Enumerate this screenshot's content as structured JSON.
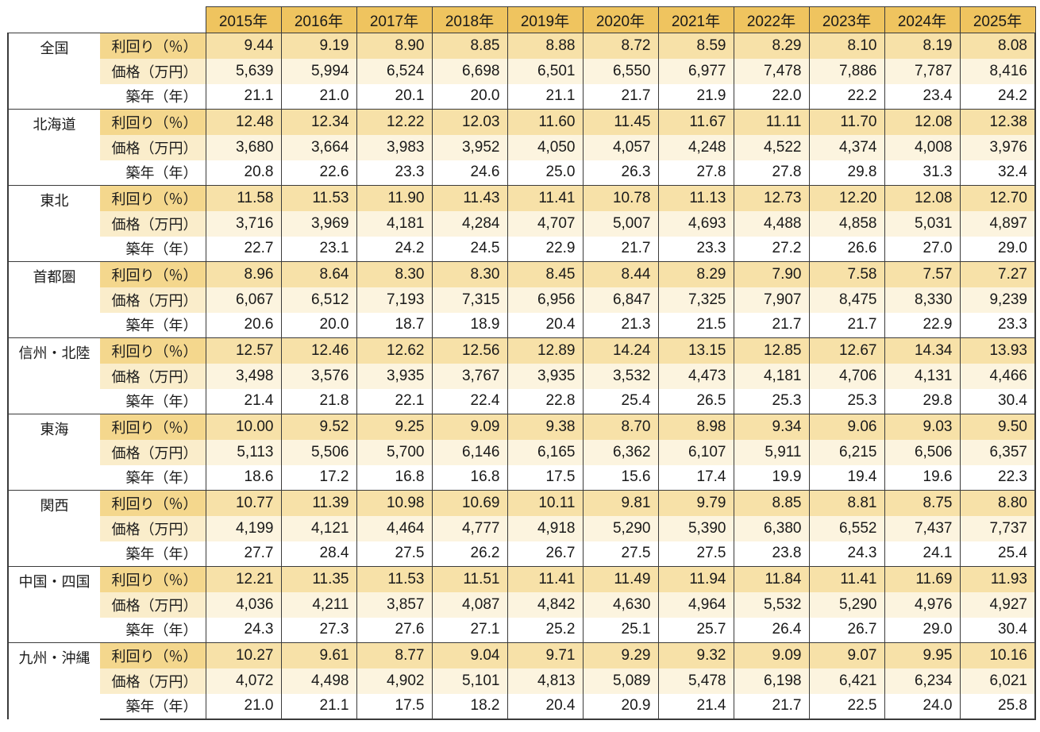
{
  "table": {
    "corner": "",
    "years": [
      "2015年",
      "2016年",
      "2017年",
      "2018年",
      "2019年",
      "2020年",
      "2021年",
      "2022年",
      "2023年",
      "2024年",
      "2025年"
    ],
    "metric_labels": [
      "利回り（％）",
      "価格（万円）",
      "築年（年）"
    ],
    "regions": [
      {
        "name": "全国",
        "rows": [
          {
            "label": "利回り（％）",
            "values": [
              "9.44",
              "9.19",
              "8.90",
              "8.85",
              "8.88",
              "8.72",
              "8.59",
              "8.29",
              "8.10",
              "8.19",
              "8.08"
            ]
          },
          {
            "label": "価格（万円）",
            "values": [
              "5,639",
              "5,994",
              "6,524",
              "6,698",
              "6,501",
              "6,550",
              "6,977",
              "7,478",
              "7,886",
              "7,787",
              "8,416"
            ]
          },
          {
            "label": "築年（年）",
            "values": [
              "21.1",
              "21.0",
              "20.1",
              "20.0",
              "21.1",
              "21.7",
              "21.9",
              "22.0",
              "22.2",
              "23.4",
              "24.2"
            ]
          }
        ]
      },
      {
        "name": "北海道",
        "rows": [
          {
            "label": "利回り（％）",
            "values": [
              "12.48",
              "12.34",
              "12.22",
              "12.03",
              "11.60",
              "11.45",
              "11.67",
              "11.11",
              "11.70",
              "12.08",
              "12.38"
            ]
          },
          {
            "label": "価格（万円）",
            "values": [
              "3,680",
              "3,664",
              "3,983",
              "3,952",
              "4,050",
              "4,057",
              "4,248",
              "4,522",
              "4,374",
              "4,008",
              "3,976"
            ]
          },
          {
            "label": "築年（年）",
            "values": [
              "20.8",
              "22.6",
              "23.3",
              "24.6",
              "25.0",
              "26.3",
              "27.8",
              "27.8",
              "29.8",
              "31.3",
              "32.4"
            ]
          }
        ]
      },
      {
        "name": "東北",
        "rows": [
          {
            "label": "利回り（％）",
            "values": [
              "11.58",
              "11.53",
              "11.90",
              "11.43",
              "11.41",
              "10.78",
              "11.13",
              "12.73",
              "12.20",
              "12.08",
              "12.70"
            ]
          },
          {
            "label": "価格（万円）",
            "values": [
              "3,716",
              "3,969",
              "4,181",
              "4,284",
              "4,707",
              "5,007",
              "4,693",
              "4,488",
              "4,858",
              "5,031",
              "4,897"
            ]
          },
          {
            "label": "築年（年）",
            "values": [
              "22.7",
              "23.1",
              "24.2",
              "24.5",
              "22.9",
              "21.7",
              "23.3",
              "27.2",
              "26.6",
              "27.0",
              "29.0"
            ]
          }
        ]
      },
      {
        "name": "首都圏",
        "rows": [
          {
            "label": "利回り（％）",
            "values": [
              "8.96",
              "8.64",
              "8.30",
              "8.30",
              "8.45",
              "8.44",
              "8.29",
              "7.90",
              "7.58",
              "7.57",
              "7.27"
            ]
          },
          {
            "label": "価格（万円）",
            "values": [
              "6,067",
              "6,512",
              "7,193",
              "7,315",
              "6,956",
              "6,847",
              "7,325",
              "7,907",
              "8,475",
              "8,330",
              "9,239"
            ]
          },
          {
            "label": "築年（年）",
            "values": [
              "20.6",
              "20.0",
              "18.7",
              "18.9",
              "20.4",
              "21.3",
              "21.5",
              "21.7",
              "21.7",
              "22.9",
              "23.3"
            ]
          }
        ]
      },
      {
        "name": "信州・北陸",
        "rows": [
          {
            "label": "利回り（％）",
            "values": [
              "12.57",
              "12.46",
              "12.62",
              "12.56",
              "12.89",
              "14.24",
              "13.15",
              "12.85",
              "12.67",
              "14.34",
              "13.93"
            ]
          },
          {
            "label": "価格（万円）",
            "values": [
              "3,498",
              "3,576",
              "3,935",
              "3,767",
              "3,935",
              "3,532",
              "4,473",
              "4,181",
              "4,706",
              "4,131",
              "4,466"
            ]
          },
          {
            "label": "築年（年）",
            "values": [
              "21.4",
              "21.8",
              "22.1",
              "22.4",
              "22.8",
              "25.4",
              "26.5",
              "25.3",
              "25.3",
              "29.8",
              "30.4"
            ]
          }
        ]
      },
      {
        "name": "東海",
        "rows": [
          {
            "label": "利回り（％）",
            "values": [
              "10.00",
              "9.52",
              "9.25",
              "9.09",
              "9.38",
              "8.70",
              "8.98",
              "9.34",
              "9.06",
              "9.03",
              "9.50"
            ]
          },
          {
            "label": "価格（万円）",
            "values": [
              "5,113",
              "5,506",
              "5,700",
              "6,146",
              "6,165",
              "6,362",
              "6,107",
              "5,911",
              "6,215",
              "6,506",
              "6,357"
            ]
          },
          {
            "label": "築年（年）",
            "values": [
              "18.6",
              "17.2",
              "16.8",
              "16.8",
              "17.5",
              "15.6",
              "17.4",
              "19.9",
              "19.4",
              "19.6",
              "22.3"
            ]
          }
        ]
      },
      {
        "name": "関西",
        "rows": [
          {
            "label": "利回り（％）",
            "values": [
              "10.77",
              "11.39",
              "10.98",
              "10.69",
              "10.11",
              "9.81",
              "9.79",
              "8.85",
              "8.81",
              "8.75",
              "8.80"
            ]
          },
          {
            "label": "価格（万円）",
            "values": [
              "4,199",
              "4,121",
              "4,464",
              "4,777",
              "4,918",
              "5,290",
              "5,390",
              "6,380",
              "6,552",
              "7,437",
              "7,737"
            ]
          },
          {
            "label": "築年（年）",
            "values": [
              "27.7",
              "28.4",
              "27.5",
              "26.2",
              "26.7",
              "27.5",
              "27.5",
              "23.8",
              "24.3",
              "24.1",
              "25.4"
            ]
          }
        ]
      },
      {
        "name": "中国・四国",
        "rows": [
          {
            "label": "利回り（％）",
            "values": [
              "12.21",
              "11.35",
              "11.53",
              "11.51",
              "11.41",
              "11.49",
              "11.94",
              "11.84",
              "11.41",
              "11.69",
              "11.93"
            ]
          },
          {
            "label": "価格（万円）",
            "values": [
              "4,036",
              "4,211",
              "3,857",
              "4,087",
              "4,842",
              "4,630",
              "4,964",
              "5,532",
              "5,290",
              "4,976",
              "4,927"
            ]
          },
          {
            "label": "築年（年）",
            "values": [
              "24.3",
              "27.3",
              "27.6",
              "27.1",
              "25.2",
              "25.1",
              "25.7",
              "26.4",
              "26.7",
              "29.0",
              "30.4"
            ]
          }
        ]
      },
      {
        "name": "九州・沖縄",
        "rows": [
          {
            "label": "利回り（％）",
            "values": [
              "10.27",
              "9.61",
              "8.77",
              "9.04",
              "9.71",
              "9.29",
              "9.32",
              "9.09",
              "9.07",
              "9.95",
              "10.16"
            ]
          },
          {
            "label": "価格（万円）",
            "values": [
              "4,072",
              "4,498",
              "4,902",
              "5,101",
              "4,813",
              "5,089",
              "5,478",
              "6,198",
              "6,421",
              "6,234",
              "6,021"
            ]
          },
          {
            "label": "築年（年）",
            "values": [
              "21.0",
              "21.1",
              "17.5",
              "18.2",
              "20.4",
              "20.9",
              "21.4",
              "21.7",
              "22.5",
              "24.0",
              "25.8"
            ]
          }
        ]
      }
    ]
  },
  "colors": {
    "header_bg": "#EFC45F",
    "yield_label_bg": "#F4D78D",
    "yield_cell_bg": "#F7E1A8",
    "price_label_bg": "#FAEDCB",
    "price_cell_bg": "#FCF4DF",
    "age_row_bg": "#FFFFFF",
    "border": "#3B3B3B",
    "text": "#1A1A1A"
  }
}
